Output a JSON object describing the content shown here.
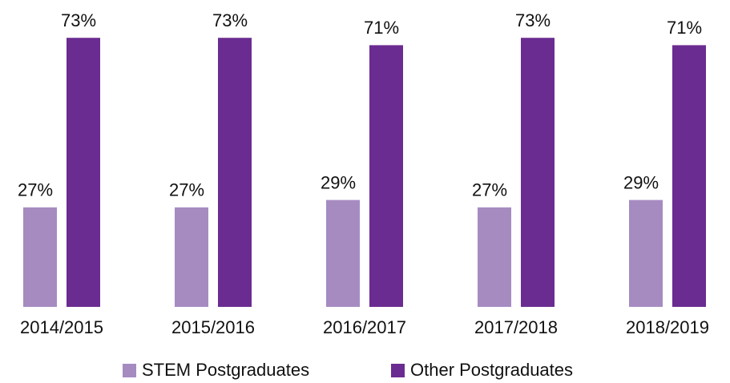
{
  "chart_data": {
    "type": "bar",
    "categories": [
      "2014/2015",
      "2015/2016",
      "2016/2017",
      "2017/2018",
      "2018/2019"
    ],
    "series": [
      {
        "name": "STEM Postgraduates",
        "color": "#a68bc1",
        "values": [
          27,
          27,
          29,
          27,
          29
        ],
        "value_labels": [
          "27%",
          "27%",
          "29%",
          "27%",
          "29%"
        ]
      },
      {
        "name": "Other Postgraduates",
        "color": "#6a2c91",
        "values": [
          73,
          73,
          71,
          73,
          71
        ],
        "value_labels": [
          "73%",
          "73%",
          "71%",
          "73%",
          "71%"
        ]
      }
    ],
    "legend": "bottom"
  }
}
